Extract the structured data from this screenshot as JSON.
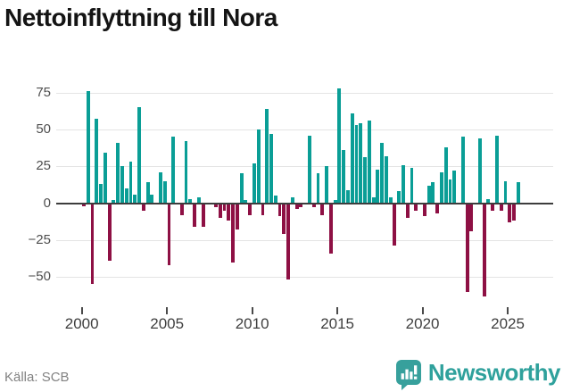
{
  "title": "Nettoinflyttning till Nora",
  "source_label": "Källa: SCB",
  "brand": {
    "name": "Newsworthy",
    "logo_icon": "speech-bubble-bar-chart",
    "color": "#37a09c"
  },
  "colors": {
    "positive_bar": "#0a9e96",
    "negative_bar": "#8e1044",
    "gridline": "#e4e4e4",
    "zero_line": "#3d3d3d",
    "title_text": "#141414",
    "axis_text": "#4f4f4f",
    "source_text": "#828282"
  },
  "chart_data": {
    "type": "bar",
    "title": "Nettoinflyttning till Nora",
    "frequency": "quarterly",
    "start_period": "2000Q1",
    "end_period": "2025Q3",
    "x_tick_labels": [
      "2000",
      "2005",
      "2010",
      "2015",
      "2020",
      "2025"
    ],
    "y_ticks": [
      75,
      50,
      25,
      0,
      -25,
      -50
    ],
    "ylim": [
      -70,
      85
    ],
    "grid": true,
    "legend": false,
    "values": [
      -2,
      76,
      -55,
      57,
      13,
      34,
      -39,
      2,
      41,
      25,
      10,
      28,
      6,
      65,
      -5,
      14,
      6,
      0,
      21,
      15,
      -42,
      45,
      0,
      -8,
      42,
      3,
      -16,
      4,
      -16,
      0,
      0,
      -3,
      -10,
      -5,
      -12,
      -40,
      -18,
      20,
      2,
      -8,
      27,
      50,
      -8,
      64,
      47,
      5,
      -9,
      -21,
      -52,
      4,
      -4,
      -3,
      0,
      46,
      -3,
      20,
      -8,
      25,
      -34,
      2,
      78,
      36,
      9,
      61,
      53,
      54,
      31,
      56,
      4,
      23,
      41,
      32,
      4,
      -29,
      8,
      26,
      -10,
      24,
      -5,
      0,
      -9,
      12,
      14,
      -7,
      21,
      38,
      16,
      22,
      0,
      45,
      -60,
      -19,
      0,
      44,
      -63,
      3,
      -5,
      46,
      -5,
      15,
      -13,
      -12,
      14
    ]
  }
}
